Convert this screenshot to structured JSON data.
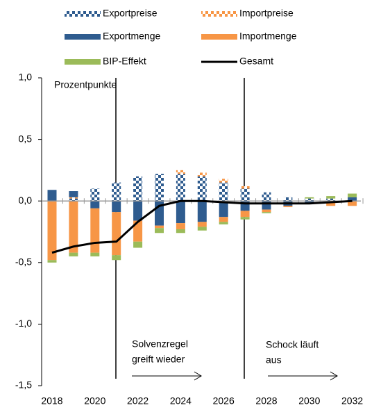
{
  "chart_data": {
    "type": "bar",
    "stacked": true,
    "y_label": "Prozentpunkte",
    "categories": [
      "2018",
      null,
      "2020",
      null,
      "2022",
      null,
      "2024",
      null,
      "2026",
      null,
      "2028",
      null,
      "2030",
      null,
      "2032"
    ],
    "series": [
      {
        "name": "Exportpreise",
        "color": "#2f5c8f",
        "hatch": true,
        "values": [
          0,
          0.02,
          0.1,
          0.15,
          0.2,
          0.22,
          0.22,
          0.2,
          0.15,
          0.1,
          0.07,
          0.03,
          0.02,
          0.02,
          0
        ]
      },
      {
        "name": "Importpreise",
        "color": "#f79646",
        "hatch": true,
        "values": [
          0,
          0.01,
          0,
          0,
          0,
          0,
          0.03,
          0.03,
          0.03,
          0.02,
          0,
          0,
          0,
          0,
          0
        ]
      },
      {
        "name": "Exportmenge",
        "color": "#2f5c8f",
        "values": [
          0.09,
          0.05,
          -0.06,
          -0.09,
          -0.16,
          -0.2,
          -0.18,
          -0.17,
          -0.13,
          -0.08,
          -0.07,
          -0.04,
          -0.02,
          0,
          0.03
        ]
      },
      {
        "name": "Importmenge",
        "color": "#f79646",
        "values": [
          -0.48,
          -0.42,
          -0.36,
          -0.35,
          -0.17,
          -0.02,
          -0.05,
          -0.04,
          -0.04,
          -0.05,
          -0.02,
          -0.01,
          0,
          -0.04,
          -0.04
        ]
      },
      {
        "name": "BIP-Effekt",
        "color": "#9bbb59",
        "values": [
          -0.02,
          -0.03,
          -0.03,
          -0.04,
          -0.05,
          -0.04,
          -0.03,
          -0.03,
          -0.02,
          -0.02,
          -0.01,
          0,
          0.01,
          0.02,
          0.03
        ]
      },
      {
        "name": "Gesamt",
        "type": "line",
        "color": "#000000",
        "values": [
          -0.42,
          -0.37,
          -0.34,
          -0.33,
          -0.17,
          -0.04,
          0,
          0,
          -0.01,
          -0.02,
          -0.02,
          -0.02,
          -0.02,
          -0.01,
          0
        ]
      }
    ],
    "ylim": [
      -1.5,
      1
    ],
    "yticks": [
      {
        "value": -1.5,
        "label": "-1,5"
      },
      {
        "value": -1,
        "label": "-1,0"
      },
      {
        "value": -0.5,
        "label": "-0,5"
      },
      {
        "value": 0,
        "label": "0,0"
      },
      {
        "value": 0.5,
        "label": "0,5"
      },
      {
        "value": 1,
        "label": "1,0"
      }
    ],
    "annotations": [
      [
        "Solvenzregel",
        "greift wieder"
      ],
      [
        "Schock läuft",
        "aus"
      ]
    ]
  }
}
